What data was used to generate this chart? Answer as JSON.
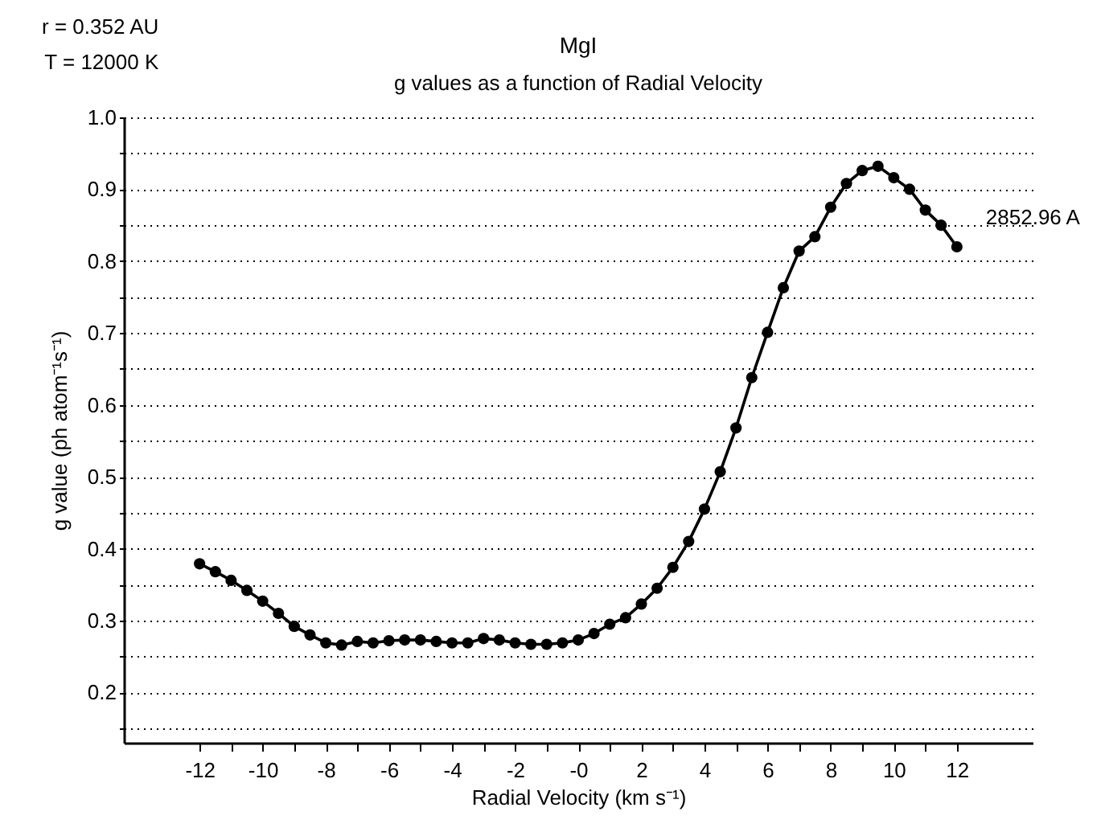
{
  "chart_data": {
    "type": "line",
    "title": "MgI",
    "subtitle": "g values as a function of Radial Velocity",
    "xlabel": "Radial Velocity (km s⁻¹)",
    "ylabel": "g value (ph atom⁻¹s⁻¹)",
    "annotations": [
      "r = 0.352 AU",
      "T = 12000 K"
    ],
    "x": [
      -12,
      -11.5,
      -11,
      -10.5,
      -10,
      -9.5,
      -9,
      -8.5,
      -8,
      -7.5,
      -7,
      -6.5,
      -6,
      -5.5,
      -5,
      -4.5,
      -4,
      -3.5,
      -3,
      -2.5,
      -2,
      -1.5,
      -1,
      -0.5,
      0,
      0.5,
      1,
      1.5,
      2,
      2.5,
      3,
      3.5,
      4,
      4.5,
      5,
      5.5,
      6,
      6.5,
      7,
      7.5,
      8,
      8.5,
      9,
      9.5,
      10,
      10.5,
      11,
      11.5,
      12
    ],
    "series": [
      {
        "name": "2852.96 A",
        "color": "#000000",
        "values": [
          0.379,
          0.368,
          0.356,
          0.342,
          0.327,
          0.31,
          0.292,
          0.28,
          0.269,
          0.266,
          0.271,
          0.269,
          0.272,
          0.273,
          0.273,
          0.271,
          0.269,
          0.269,
          0.275,
          0.273,
          0.269,
          0.267,
          0.267,
          0.269,
          0.273,
          0.282,
          0.295,
          0.304,
          0.323,
          0.345,
          0.374,
          0.41,
          0.455,
          0.507,
          0.568,
          0.638,
          0.701,
          0.763,
          0.814,
          0.834,
          0.875,
          0.908,
          0.926,
          0.932,
          0.916,
          0.9,
          0.871,
          0.85,
          0.82
        ]
      }
    ],
    "xlim": [
      -14.4,
      14.4
    ],
    "xticks": [
      -12,
      {
        "value": -11,
        "label": null
      },
      -10,
      {
        "value": -9,
        "label": null
      },
      -8,
      {
        "value": -7,
        "label": null
      },
      -6,
      {
        "value": -5,
        "label": null
      },
      -4,
      {
        "value": -3,
        "label": null
      },
      -2,
      {
        "value": -1,
        "label": null
      },
      {
        "value": 0,
        "label": "-0"
      },
      {
        "value": 1,
        "label": null
      },
      2,
      {
        "value": 3,
        "label": null
      },
      4,
      {
        "value": 5,
        "label": null
      },
      6,
      {
        "value": 7,
        "label": null
      },
      8,
      {
        "value": 9,
        "label": null
      },
      10,
      {
        "value": 11,
        "label": null
      },
      12
    ],
    "ylim": [
      0.13,
      1.0
    ],
    "yticks": [
      {
        "value": 0.15,
        "label": null
      },
      0.2,
      {
        "value": 0.25,
        "label": null
      },
      0.3,
      {
        "value": 0.35,
        "label": null
      },
      0.4,
      {
        "value": 0.45,
        "label": null
      },
      0.5,
      {
        "value": 0.55,
        "label": null
      },
      0.6,
      {
        "value": 0.65,
        "label": null
      },
      0.7,
      {
        "value": 0.75,
        "label": null
      },
      0.8,
      {
        "value": 0.85,
        "label": null
      },
      0.9,
      {
        "value": 0.95,
        "label": null
      },
      {
        "value": 1.0,
        "label": "1.0"
      }
    ],
    "grid": "y",
    "marker": "circle",
    "line_style": "solid"
  }
}
